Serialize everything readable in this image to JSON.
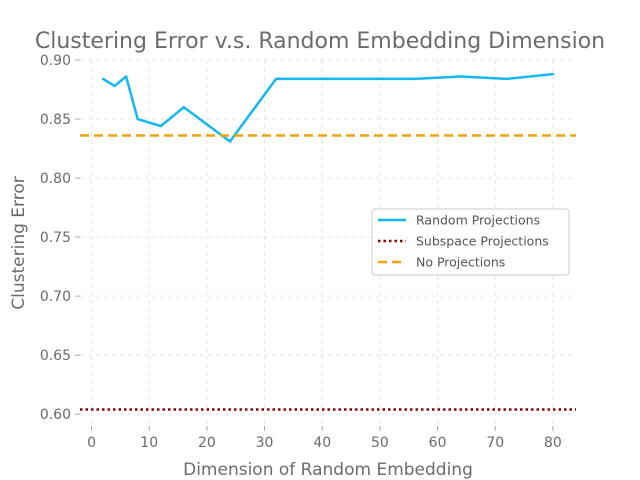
{
  "chart_data": {
    "type": "line",
    "title": "Clustering Error v.s. Random Embedding Dimension",
    "xlabel": "Dimension of Random Embedding",
    "ylabel": "Clustering Error",
    "xlim": [
      -2,
      84
    ],
    "ylim": [
      0.59,
      0.9
    ],
    "xticks": [
      0,
      10,
      20,
      30,
      40,
      50,
      60,
      70,
      80
    ],
    "yticks": [
      0.6,
      0.65,
      0.7,
      0.75,
      0.8,
      0.85,
      0.9
    ],
    "grid": true,
    "legend_position": "center-right",
    "series": [
      {
        "name": "Random Projections",
        "color": "#14b8f0",
        "style": "solid",
        "x": [
          2,
          4,
          6,
          8,
          12,
          16,
          24,
          32,
          40,
          48,
          56,
          64,
          72,
          80
        ],
        "y": [
          0.884,
          0.878,
          0.886,
          0.85,
          0.844,
          0.86,
          0.831,
          0.884,
          0.884,
          0.884,
          0.884,
          0.886,
          0.884,
          0.888
        ]
      },
      {
        "name": "Subspace Projections",
        "color": "#8b0000",
        "style": "dotted",
        "hline": 0.604
      },
      {
        "name": "No Projections",
        "color": "#f2a20a",
        "style": "dashed",
        "hline": 0.836
      }
    ]
  }
}
